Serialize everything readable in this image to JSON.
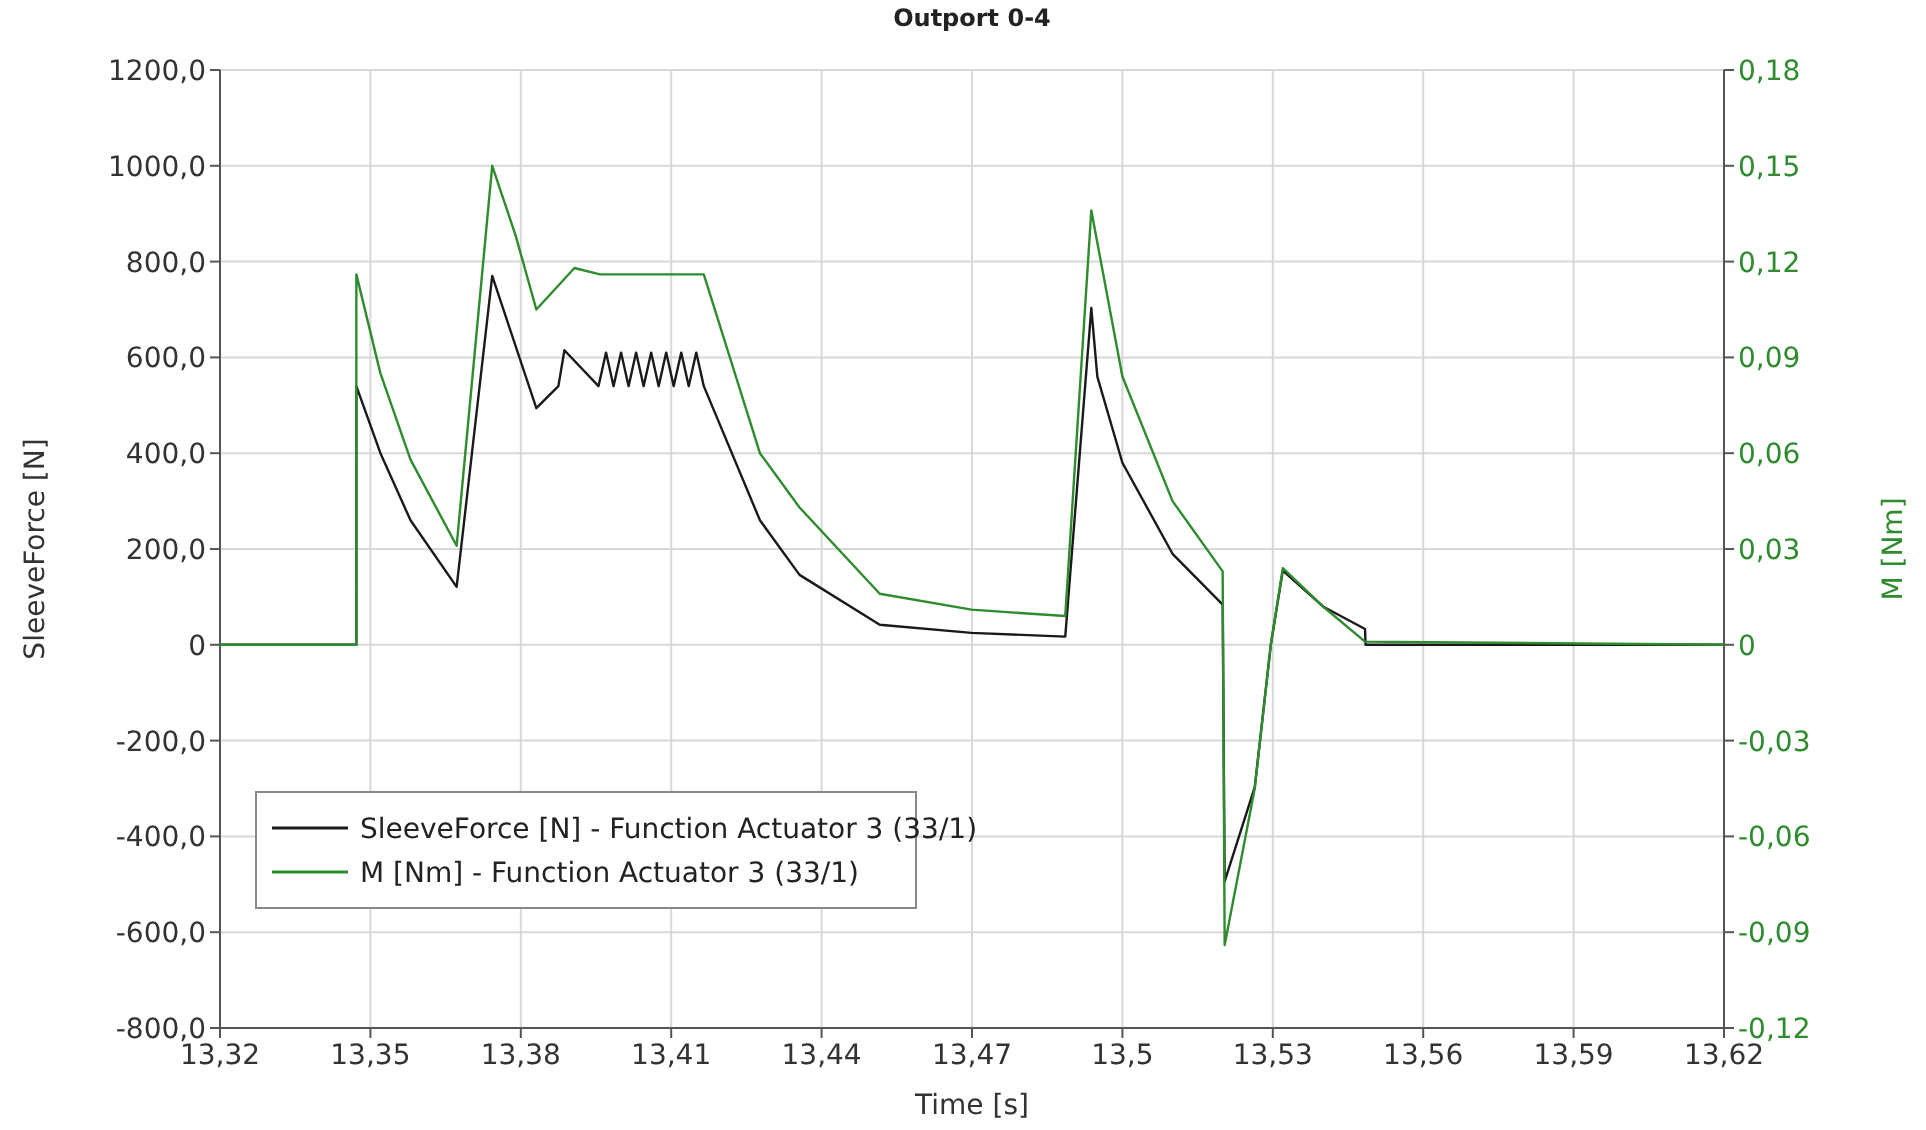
{
  "chart_data": {
    "type": "line",
    "title": "Outport 0-4",
    "xlabel": "Time [s]",
    "ylabel": "SleeveForce [N]",
    "y2label": "M [Nm]",
    "xlim": [
      13.32,
      13.62
    ],
    "xticks": [
      {
        "value": 13.32,
        "label": "13,32"
      },
      {
        "value": 13.35,
        "label": "13,35"
      },
      {
        "value": 13.38,
        "label": "13,38"
      },
      {
        "value": 13.41,
        "label": "13,41"
      },
      {
        "value": 13.44,
        "label": "13,44"
      },
      {
        "value": 13.47,
        "label": "13,47"
      },
      {
        "value": 13.5,
        "label": "13,5"
      },
      {
        "value": 13.53,
        "label": "13,53"
      },
      {
        "value": 13.56,
        "label": "13,56"
      },
      {
        "value": 13.59,
        "label": "13,59"
      },
      {
        "value": 13.62,
        "label": "13,62"
      }
    ],
    "ylim": [
      -800,
      1200
    ],
    "yticks": [
      {
        "value": -800,
        "label": "-800,0"
      },
      {
        "value": -600,
        "label": "-600,0"
      },
      {
        "value": -400,
        "label": "-400,0"
      },
      {
        "value": -200,
        "label": "-200,0"
      },
      0,
      {
        "value": 200,
        "label": "200,0"
      },
      {
        "value": 400,
        "label": "400,0"
      },
      {
        "value": 600,
        "label": "600,0"
      },
      {
        "value": 800,
        "label": "800,0"
      },
      {
        "value": 1000,
        "label": "1000,0"
      },
      {
        "value": 1200,
        "label": "1200,0"
      }
    ],
    "y2lim": [
      -0.12,
      0.18
    ],
    "y2ticks": [
      {
        "value": -0.12,
        "label": "-0,12"
      },
      {
        "value": -0.09,
        "label": "-0,09"
      },
      {
        "value": -0.06,
        "label": "-0,06"
      },
      {
        "value": -0.03,
        "label": "-0,03"
      },
      0,
      {
        "value": 0.03,
        "label": "0,03"
      },
      {
        "value": 0.06,
        "label": "0,06"
      },
      {
        "value": 0.09,
        "label": "0,09"
      },
      {
        "value": 0.12,
        "label": "0,12"
      },
      {
        "value": 0.15,
        "label": "0,15"
      },
      {
        "value": 0.18,
        "label": "0,18"
      }
    ],
    "grid": true,
    "legend": "bottom left",
    "marker": "none",
    "line_style": "solid",
    "series": [
      {
        "name": "SleeveForce [N] - Function Actuator 3 (33/1)",
        "color": "#1a1a1a",
        "x": [
          13.32,
          13.3472,
          13.3472,
          13.352,
          13.358,
          13.3672,
          13.3743,
          13.3831,
          13.3875,
          13.3887,
          13.3955,
          13.397,
          13.3985,
          13.4,
          13.4015,
          13.403,
          13.4045,
          13.406,
          13.4075,
          13.409,
          13.4105,
          13.412,
          13.4135,
          13.415,
          13.4165,
          13.4277,
          13.4356,
          13.4516,
          13.4699,
          13.4886,
          13.4938,
          13.495,
          13.5,
          13.51,
          13.52,
          13.5204,
          13.5264,
          13.5296,
          13.532,
          13.54,
          13.5484,
          13.5485,
          13.62
        ],
        "values": [
          0,
          0,
          540,
          400,
          260,
          121,
          770,
          494,
          540,
          615,
          540,
          610,
          540,
          610,
          540,
          610,
          540,
          610,
          540,
          610,
          540,
          610,
          540,
          610,
          540,
          260,
          146,
          42,
          25,
          17,
          703,
          560,
          380,
          190,
          84,
          -494,
          -297,
          0,
          155,
          80,
          33,
          0,
          0
        ]
      },
      {
        "name": "M [Nm] - Function Actuator 3 (33/1)",
        "color": "#2e8b2e",
        "axis": "y2",
        "x": [
          13.32,
          13.3472,
          13.3472,
          13.352,
          13.358,
          13.3672,
          13.3743,
          13.379,
          13.3831,
          13.3907,
          13.3958,
          13.4165,
          13.4277,
          13.4356,
          13.4516,
          13.4699,
          13.4886,
          13.4938,
          13.5,
          13.51,
          13.52,
          13.5204,
          13.5264,
          13.5296,
          13.532,
          13.54,
          13.5484,
          13.62
        ],
        "values": [
          0,
          0,
          0.116,
          0.085,
          0.058,
          0.031,
          0.15,
          0.128,
          0.105,
          0.118,
          0.116,
          0.116,
          0.06,
          0.043,
          0.016,
          0.011,
          0.009,
          0.136,
          0.084,
          0.045,
          0.023,
          -0.094,
          -0.045,
          0,
          0.024,
          0.012,
          0.001,
          0
        ]
      }
    ]
  }
}
